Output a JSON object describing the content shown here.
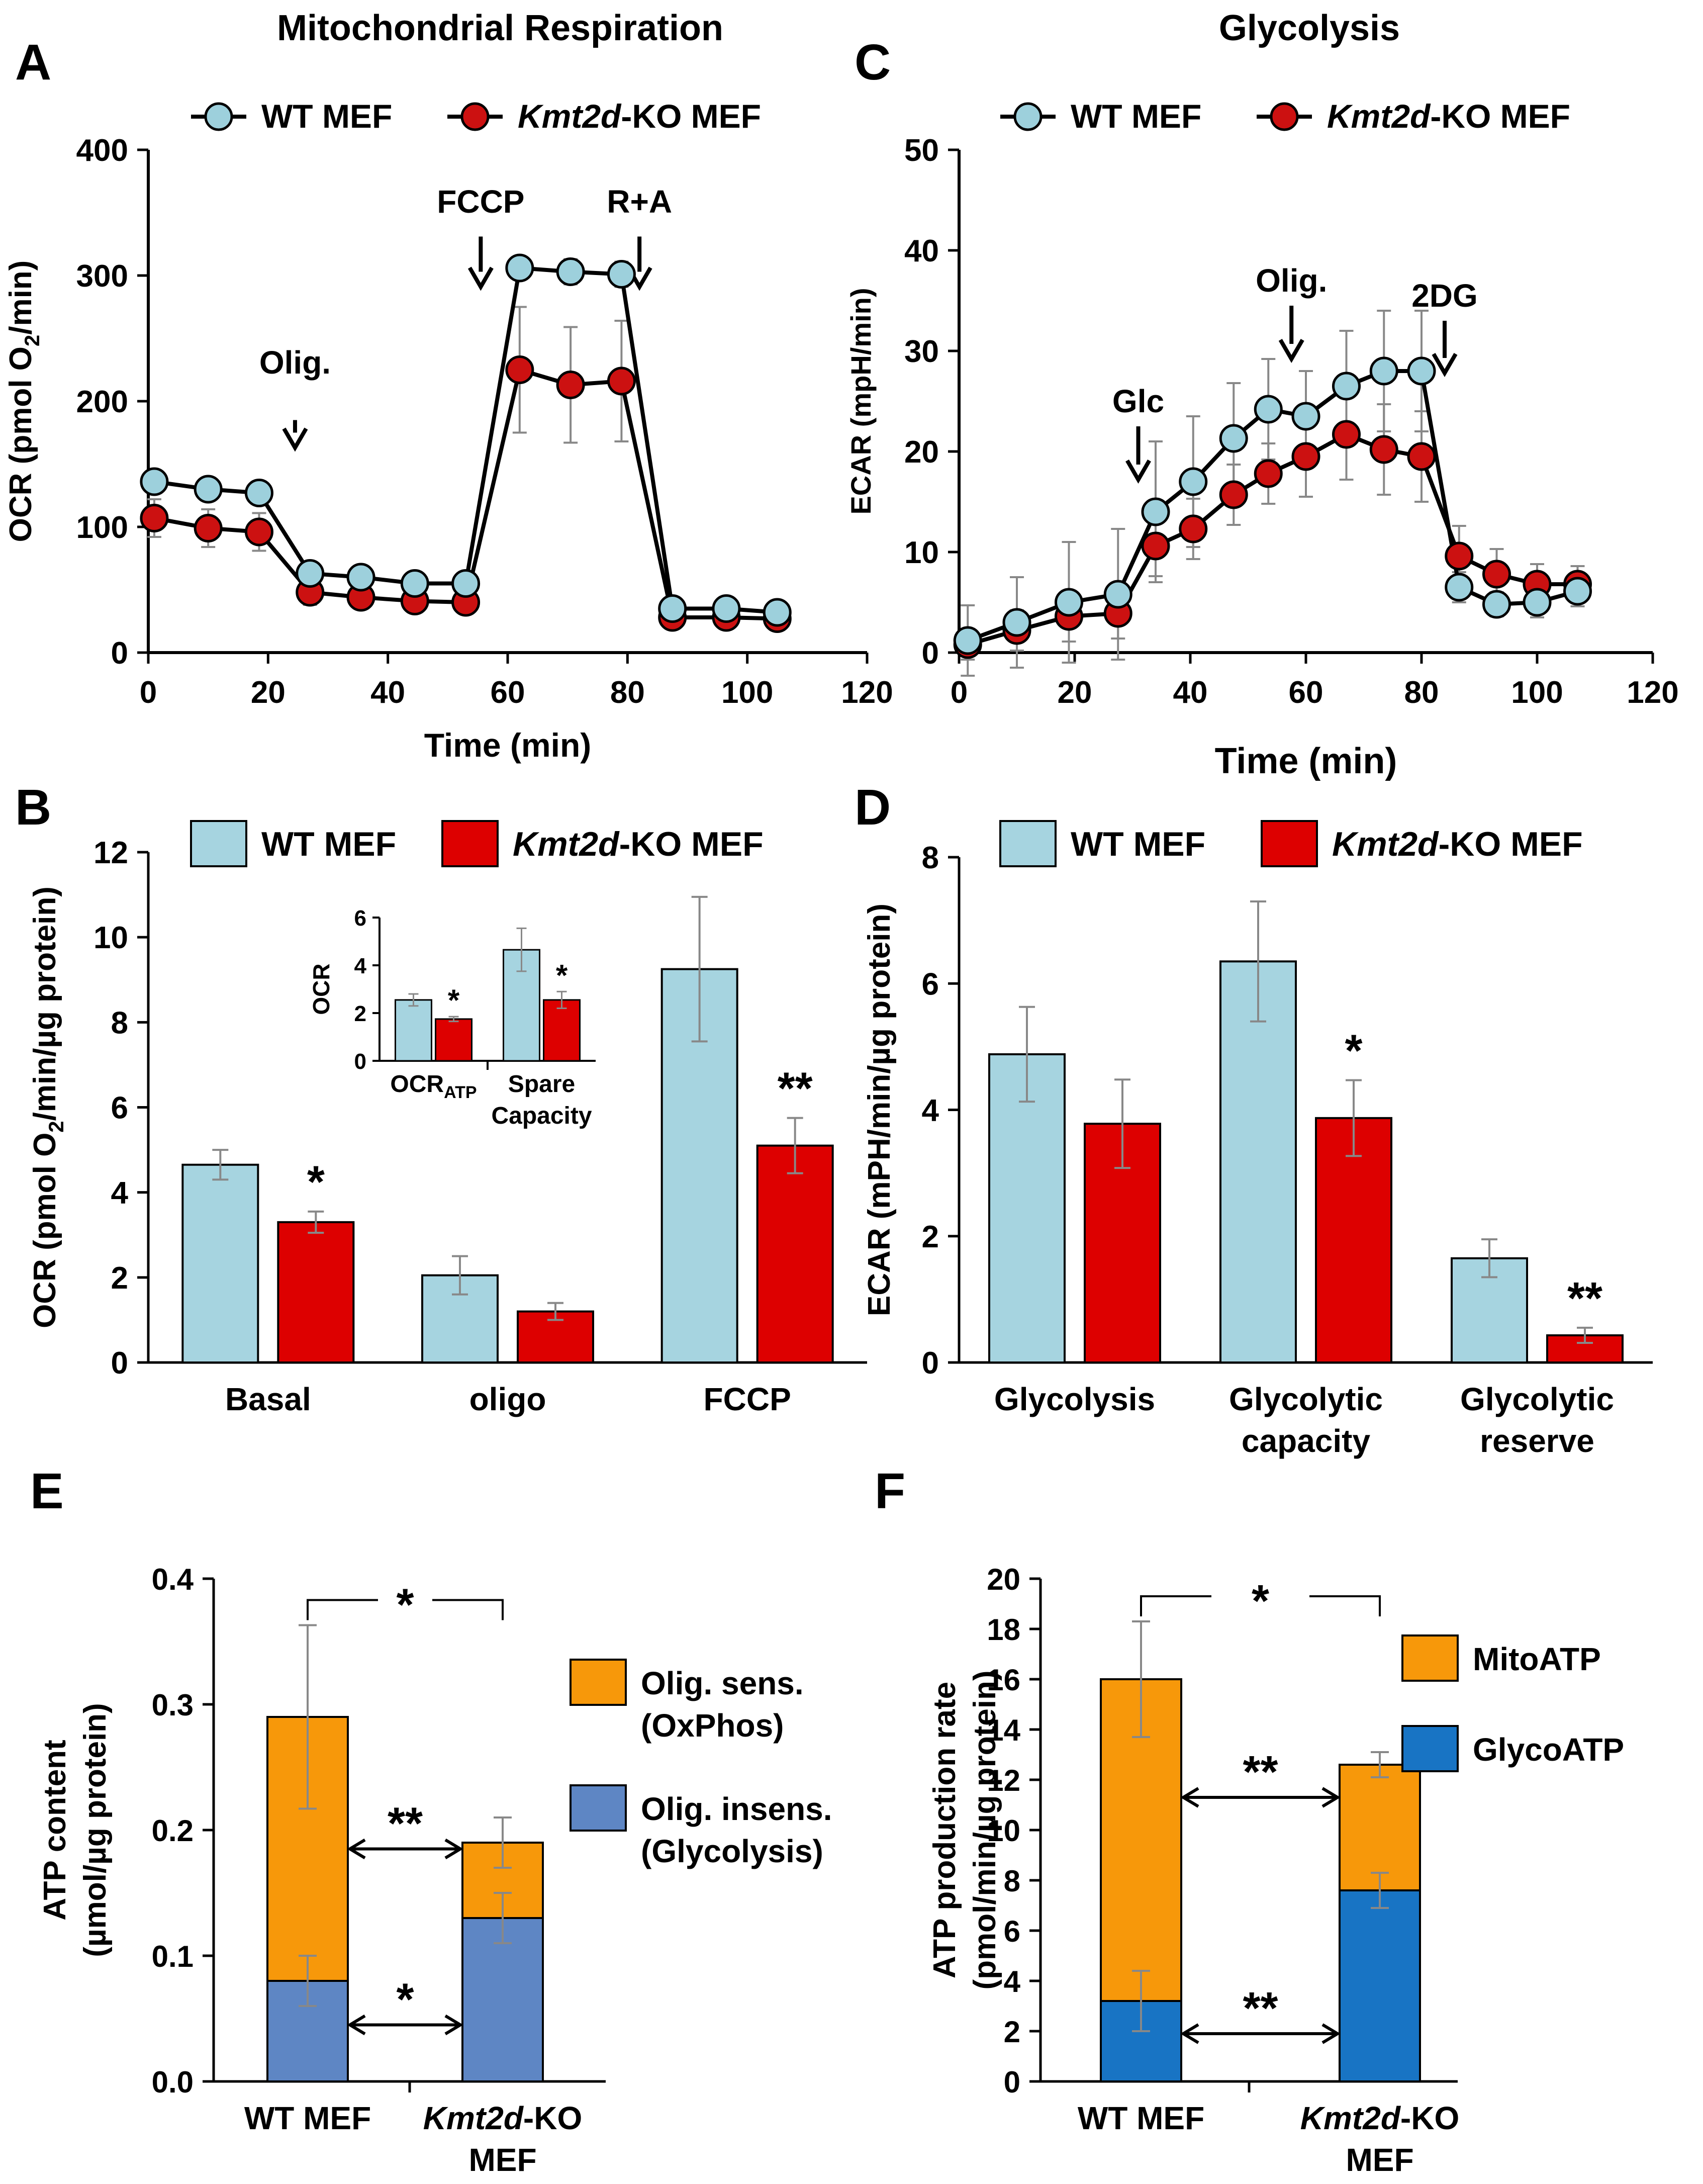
{
  "colors": {
    "wt_line_marker": "#9dd0dc",
    "ko_marker": "#cc1111",
    "wt_bar": "#a6d4e0",
    "ko_bar": "#dd0000",
    "orange": "#f7980a",
    "blue_e": "#5e86c4",
    "blue_f": "#1874c4",
    "error": "#888888"
  },
  "chart_data": [
    {
      "id": "A",
      "panel_label": "A",
      "type": "line",
      "title": "Mitochondrial Respiration",
      "xlabel": "Time (min)",
      "ylabel": "OCR (pmol O",
      "ylabel_sub": "2",
      "ylabel_tail": "/min)",
      "xlim": [
        0,
        120
      ],
      "ylim": [
        0,
        400
      ],
      "xticks": [
        0,
        20,
        40,
        60,
        80,
        100,
        120
      ],
      "yticks": [
        0,
        100,
        200,
        300,
        400
      ],
      "legend": [
        {
          "label": "WT MEF",
          "italic": "",
          "tail": ""
        },
        {
          "label": "",
          "italic": "Kmt2d",
          "tail": "-KO MEF"
        }
      ],
      "series": [
        {
          "name": "WT MEF",
          "x": [
            1,
            10,
            18.5,
            27,
            35.5,
            44.5,
            53,
            62,
            70.5,
            79,
            87.5,
            96.5,
            105
          ],
          "y": [
            136,
            130,
            127,
            63,
            60,
            55,
            55,
            306,
            303,
            301,
            35,
            35,
            32
          ],
          "err": [
            8,
            6,
            7,
            5,
            5,
            4,
            5,
            5,
            10,
            10,
            5,
            4,
            4
          ]
        },
        {
          "name": "Kmt2d-KO MEF",
          "x": [
            1,
            10,
            18.5,
            27,
            35.5,
            44.5,
            53,
            62,
            70.5,
            79,
            87.5,
            96.5,
            105
          ],
          "y": [
            107,
            99,
            96,
            48,
            44,
            41,
            40,
            225,
            213,
            216,
            28,
            28,
            27
          ],
          "err": [
            15,
            15,
            15,
            10,
            7,
            6,
            6,
            50,
            46,
            48,
            5,
            5,
            5
          ]
        }
      ],
      "annotations": [
        {
          "text": "Olig.",
          "x": 24.5,
          "arrow_top": 185,
          "arrow_bottom": 163,
          "label_y": 222
        },
        {
          "text": "FCCP",
          "x": 55.5,
          "arrow_top": 331,
          "arrow_bottom": 291,
          "label_y": 350
        },
        {
          "text": "R+A",
          "x": 82,
          "arrow_top": 331,
          "arrow_bottom": 291,
          "label_y": 350
        }
      ]
    },
    {
      "id": "C",
      "panel_label": "C",
      "type": "line",
      "title": "Glycolysis",
      "xlabel": "Time (min)",
      "ylabel": "ECAR (mpH/min)",
      "xlim": [
        0,
        120
      ],
      "ylim": [
        0,
        50
      ],
      "xticks": [
        0,
        20,
        40,
        60,
        80,
        100,
        120
      ],
      "yticks": [
        0,
        10,
        20,
        30,
        40,
        50
      ],
      "legend": [
        {
          "label": "WT MEF",
          "italic": "",
          "tail": ""
        },
        {
          "label": "",
          "italic": "Kmt2d",
          "tail": "-KO MEF"
        }
      ],
      "series": [
        {
          "name": "WT MEF",
          "x": [
            1.5,
            10,
            19,
            27.5,
            34,
            40.5,
            47.5,
            53.5,
            60,
            67,
            73.5,
            80,
            86.5,
            93,
            100,
            107
          ],
          "y": [
            1.2,
            3.0,
            5.0,
            5.8,
            14,
            17,
            21.3,
            24.2,
            23.5,
            26.5,
            28,
            28,
            6.5,
            4.8,
            5,
            6.1
          ],
          "err": [
            3.5,
            4.5,
            6,
            6.5,
            7,
            6.5,
            5.5,
            5,
            4.5,
            5.5,
            6,
            6,
            1.5,
            1.2,
            1.5,
            1.5
          ]
        },
        {
          "name": "Kmt2d-KO MEF",
          "x": [
            1.5,
            10,
            19,
            27.5,
            34,
            40.5,
            47.5,
            53.5,
            60,
            67,
            73.5,
            80,
            86.5,
            93,
            100,
            107
          ],
          "y": [
            0.8,
            2.2,
            3.6,
            3.9,
            10.6,
            12.3,
            15.7,
            17.8,
            19.5,
            21.7,
            20.2,
            19.5,
            9.6,
            7.8,
            6.8,
            6.8
          ],
          "err": [
            1.5,
            2,
            2.5,
            2.5,
            3,
            3,
            3,
            3,
            4,
            4.5,
            4.5,
            4.5,
            3,
            2.5,
            2,
            1.8
          ]
        }
      ],
      "annotations": [
        {
          "text": "Glc",
          "x": 31,
          "arrow_top": 22.5,
          "arrow_bottom": 17.2,
          "label_y": 23.9
        },
        {
          "text": "Olig.",
          "x": 57.5,
          "arrow_top": 34.5,
          "arrow_bottom": 29.2,
          "label_y": 35.9
        },
        {
          "text": "2DG",
          "x": 84,
          "arrow_top": 33,
          "arrow_bottom": 27.8,
          "label_y": 34.4
        }
      ]
    },
    {
      "id": "B",
      "panel_label": "B",
      "type": "bar",
      "ylabel": "OCR (pmol O",
      "ylabel_sub": "2",
      "ylabel_tail": "/min/µg protein)",
      "ylim": [
        0,
        12
      ],
      "yticks": [
        0,
        2,
        4,
        6,
        8,
        10,
        12
      ],
      "categories": [
        "Basal",
        "oligo",
        "FCCP"
      ],
      "legend": [
        {
          "label": "WT MEF",
          "italic": "",
          "tail": ""
        },
        {
          "label": "",
          "italic": "Kmt2d",
          "tail": "-KO MEF"
        }
      ],
      "series": [
        {
          "name": "WT MEF",
          "values": [
            4.65,
            2.05,
            9.25
          ],
          "err": [
            0.35,
            0.45,
            1.7
          ]
        },
        {
          "name": "Kmt2d-KO MEF",
          "values": [
            3.3,
            1.2,
            5.1
          ],
          "err": [
            0.25,
            0.2,
            0.65
          ]
        }
      ],
      "significance": [
        "*",
        "",
        "**"
      ],
      "inset": {
        "ylabel": "OCR",
        "ylim": [
          0,
          6
        ],
        "yticks": [
          0,
          2,
          4,
          6
        ],
        "categories": [
          {
            "main": "OCR",
            "sub": "ATP",
            "line2": ""
          },
          {
            "main": "Spare",
            "sub": "",
            "line2": "Capacity"
          }
        ],
        "series": [
          {
            "name": "WT MEF",
            "values": [
              2.55,
              4.65
            ],
            "err": [
              0.25,
              0.9
            ]
          },
          {
            "name": "Kmt2d-KO MEF",
            "values": [
              1.75,
              2.55
            ],
            "err": [
              0.1,
              0.35
            ]
          }
        ],
        "significance": [
          "*",
          "*"
        ]
      }
    },
    {
      "id": "D",
      "panel_label": "D",
      "type": "bar",
      "ylabel": "ECAR (mPH/min/µg protein)",
      "ylim": [
        0,
        8
      ],
      "yticks": [
        0,
        2,
        4,
        6,
        8
      ],
      "categories": [
        {
          "line1": "Glycolysis",
          "line2": ""
        },
        {
          "line1": "Glycolytic",
          "line2": "capacity"
        },
        {
          "line1": "Glycolytic",
          "line2": "reserve"
        }
      ],
      "legend": [
        {
          "label": "WT MEF",
          "italic": "",
          "tail": ""
        },
        {
          "label": "",
          "italic": "Kmt2d",
          "tail": "-KO MEF"
        }
      ],
      "series": [
        {
          "name": "WT MEF",
          "values": [
            4.88,
            6.35,
            1.65
          ],
          "err": [
            0.75,
            0.95,
            0.3
          ]
        },
        {
          "name": "Kmt2d-KO MEF",
          "values": [
            3.78,
            3.87,
            0.43
          ],
          "err": [
            0.7,
            0.6,
            0.12
          ]
        }
      ],
      "significance": [
        "",
        "*",
        "**"
      ]
    },
    {
      "id": "E",
      "panel_label": "E",
      "type": "bar",
      "stacked": true,
      "ylabel": "ATP content",
      "ylabel2": "(µmol/µg protein)",
      "ylim": [
        0,
        0.4
      ],
      "yticks": [
        "0.0",
        "0.1",
        "0.2",
        "0.3",
        "0.4"
      ],
      "categories": [
        {
          "line1": "WT MEF",
          "italic": "",
          "tail": "",
          "line2": ""
        },
        {
          "line1": "",
          "italic": "Kmt2d",
          "tail": "-KO",
          "line2": "MEF"
        }
      ],
      "series": [
        {
          "name": "Olig. insens. (Glycolysis)",
          "values": [
            0.08,
            0.13
          ],
          "err": [
            0.02,
            0.02
          ]
        },
        {
          "name": "Olig. sens. (OxPhos)",
          "values": [
            0.21,
            0.06
          ],
          "err": [
            0.073,
            0.02
          ]
        }
      ],
      "legend": [
        {
          "line1": "Olig. sens.",
          "line2": "(OxPhos)"
        },
        {
          "line1": "Olig. insens.",
          "line2": "(Glycolysis)"
        }
      ],
      "significance": {
        "total": "*",
        "top_segment": "**",
        "bottom_segment": "*"
      }
    },
    {
      "id": "F",
      "panel_label": "F",
      "type": "bar",
      "stacked": true,
      "ylabel": "ATP production rate",
      "ylabel2": "(pmol/min/µg protein)",
      "ylim": [
        0,
        20
      ],
      "yticks": [
        0,
        2,
        4,
        6,
        8,
        10,
        12,
        14,
        16,
        18,
        20
      ],
      "categories": [
        {
          "line1": "WT MEF",
          "italic": "",
          "tail": "",
          "line2": ""
        },
        {
          "line1": "",
          "italic": "Kmt2d",
          "tail": "-KO",
          "line2": "MEF"
        }
      ],
      "series": [
        {
          "name": "GlycoATP",
          "values": [
            3.2,
            7.6
          ],
          "err": [
            1.2,
            0.7
          ]
        },
        {
          "name": "MitoATP",
          "values": [
            12.8,
            5.0
          ],
          "err": [
            2.3,
            0.5
          ]
        }
      ],
      "legend": [
        {
          "line1": "MitoATP",
          "line2": ""
        },
        {
          "line1": "GlycoATP",
          "line2": ""
        }
      ],
      "significance": {
        "total": "*",
        "top_segment": "**",
        "bottom_segment": "**"
      }
    }
  ]
}
